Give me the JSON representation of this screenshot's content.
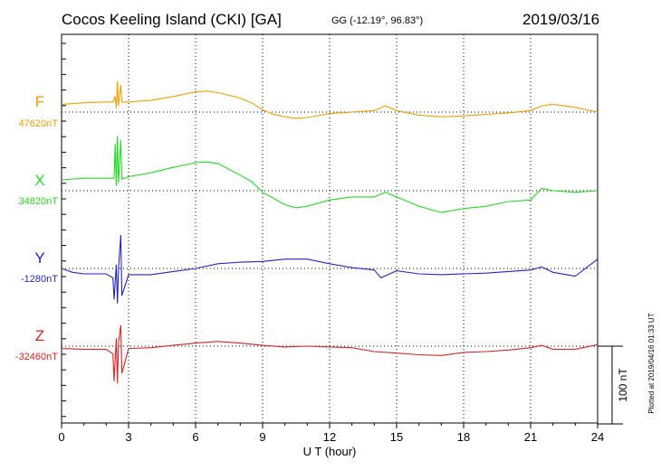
{
  "header": {
    "station": "Cocos Keeling Island (CKI)  [GA]",
    "coords": "GG (-12.19°,  96.83°)",
    "date": "2019/03/16"
  },
  "footer": {
    "plotted": "Plotted at 2019/04/16 01:33 UT"
  },
  "chart_data": {
    "type": "line",
    "title": "Cocos Keeling Island (CKI)  [GA]",
    "xlabel": "U T (hour)",
    "xlim": [
      0,
      24
    ],
    "x_ticks": [
      0,
      3,
      6,
      9,
      12,
      15,
      18,
      21,
      24
    ],
    "x_tick_labels": [
      "0",
      "3",
      "6",
      "9",
      "12",
      "15",
      "18",
      "21",
      "24"
    ],
    "grid": true,
    "scale_bar": {
      "label": "100 nT",
      "value_nT": 100
    },
    "series": [
      {
        "name": "F",
        "baseline_label": "47620nT",
        "baseline_nT": 47620,
        "color": "#f0a000",
        "points": [
          [
            0,
            47630
          ],
          [
            1,
            47632
          ],
          [
            2,
            47633
          ],
          [
            2.3,
            47633
          ],
          [
            2.4,
            47640
          ],
          [
            2.45,
            47625
          ],
          [
            2.5,
            47660
          ],
          [
            2.55,
            47628
          ],
          [
            2.65,
            47655
          ],
          [
            2.7,
            47633
          ],
          [
            3,
            47633
          ],
          [
            4,
            47635
          ],
          [
            5,
            47640
          ],
          [
            6,
            47646
          ],
          [
            6.5,
            47647
          ],
          [
            7,
            47645
          ],
          [
            8,
            47638
          ],
          [
            8.5,
            47632
          ],
          [
            9,
            47623
          ],
          [
            9.5,
            47617
          ],
          [
            10,
            47614
          ],
          [
            10.5,
            47612
          ],
          [
            11,
            47613
          ],
          [
            12,
            47618
          ],
          [
            13,
            47620
          ],
          [
            14,
            47622
          ],
          [
            14.5,
            47628
          ],
          [
            15,
            47622
          ],
          [
            16,
            47616
          ],
          [
            17,
            47614
          ],
          [
            18,
            47615
          ],
          [
            19,
            47617
          ],
          [
            20,
            47619
          ],
          [
            21,
            47622
          ],
          [
            21.5,
            47628
          ],
          [
            22,
            47630
          ],
          [
            23,
            47626
          ],
          [
            24,
            47620
          ]
        ]
      },
      {
        "name": "X",
        "baseline_label": "34820nT",
        "baseline_nT": 34820,
        "color": "#22dd22",
        "points": [
          [
            0,
            34834
          ],
          [
            1,
            34836
          ],
          [
            2,
            34836
          ],
          [
            2.35,
            34836
          ],
          [
            2.4,
            34880
          ],
          [
            2.45,
            34826
          ],
          [
            2.5,
            34890
          ],
          [
            2.55,
            34830
          ],
          [
            2.65,
            34885
          ],
          [
            2.7,
            34835
          ],
          [
            3,
            34838
          ],
          [
            4,
            34843
          ],
          [
            5,
            34850
          ],
          [
            6,
            34856
          ],
          [
            6.5,
            34857
          ],
          [
            7,
            34855
          ],
          [
            8,
            34840
          ],
          [
            8.5,
            34832
          ],
          [
            9,
            34818
          ],
          [
            10,
            34802
          ],
          [
            10.5,
            34798
          ],
          [
            11,
            34800
          ],
          [
            12,
            34808
          ],
          [
            13,
            34812
          ],
          [
            14,
            34812
          ],
          [
            14.5,
            34818
          ],
          [
            15,
            34812
          ],
          [
            16,
            34800
          ],
          [
            17,
            34792
          ],
          [
            18,
            34797
          ],
          [
            19,
            34800
          ],
          [
            20,
            34806
          ],
          [
            21,
            34808
          ],
          [
            21.5,
            34823
          ],
          [
            22,
            34820
          ],
          [
            23,
            34818
          ],
          [
            24,
            34820
          ]
        ]
      },
      {
        "name": "Y",
        "baseline_label": "-1280nT",
        "baseline_nT": -1280,
        "color": "#2222cc",
        "points": [
          [
            0,
            -1280
          ],
          [
            0.5,
            -1285
          ],
          [
            1,
            -1287
          ],
          [
            2,
            -1287
          ],
          [
            2.3,
            -1292
          ],
          [
            2.35,
            -1320
          ],
          [
            2.45,
            -1275
          ],
          [
            2.5,
            -1325
          ],
          [
            2.55,
            -1280
          ],
          [
            2.65,
            -1237
          ],
          [
            2.7,
            -1315
          ],
          [
            3,
            -1288
          ],
          [
            4,
            -1288
          ],
          [
            5,
            -1284
          ],
          [
            6,
            -1280
          ],
          [
            7,
            -1274
          ],
          [
            8,
            -1272
          ],
          [
            9,
            -1271
          ],
          [
            10,
            -1268
          ],
          [
            11,
            -1268
          ],
          [
            12,
            -1274
          ],
          [
            13,
            -1279
          ],
          [
            14,
            -1282
          ],
          [
            14.3,
            -1292
          ],
          [
            15,
            -1283
          ],
          [
            16,
            -1287
          ],
          [
            17,
            -1288
          ],
          [
            18,
            -1287
          ],
          [
            19,
            -1286
          ],
          [
            20,
            -1284
          ],
          [
            21,
            -1282
          ],
          [
            21.5,
            -1278
          ],
          [
            22,
            -1285
          ],
          [
            23,
            -1290
          ],
          [
            24,
            -1268
          ]
        ]
      },
      {
        "name": "Z",
        "baseline_label": "-32460nT",
        "baseline_nT": -32460,
        "color": "#dd2222",
        "points": [
          [
            0,
            -32463
          ],
          [
            1,
            -32464
          ],
          [
            2,
            -32464
          ],
          [
            2.3,
            -32470
          ],
          [
            2.35,
            -32505
          ],
          [
            2.45,
            -32450
          ],
          [
            2.5,
            -32508
          ],
          [
            2.55,
            -32455
          ],
          [
            2.65,
            -32433
          ],
          [
            2.7,
            -32495
          ],
          [
            3,
            -32463
          ],
          [
            4,
            -32462
          ],
          [
            5,
            -32459
          ],
          [
            6,
            -32456
          ],
          [
            7,
            -32454
          ],
          [
            8,
            -32456
          ],
          [
            9,
            -32459
          ],
          [
            10,
            -32461
          ],
          [
            11,
            -32460
          ],
          [
            12,
            -32461
          ],
          [
            13,
            -32462
          ],
          [
            14,
            -32467
          ],
          [
            15,
            -32469
          ],
          [
            16,
            -32471
          ],
          [
            17,
            -32472
          ],
          [
            18,
            -32468
          ],
          [
            19,
            -32467
          ],
          [
            20,
            -32465
          ],
          [
            21,
            -32462
          ],
          [
            21.5,
            -32459
          ],
          [
            22,
            -32464
          ],
          [
            23,
            -32464
          ],
          [
            24,
            -32458
          ]
        ]
      }
    ]
  }
}
